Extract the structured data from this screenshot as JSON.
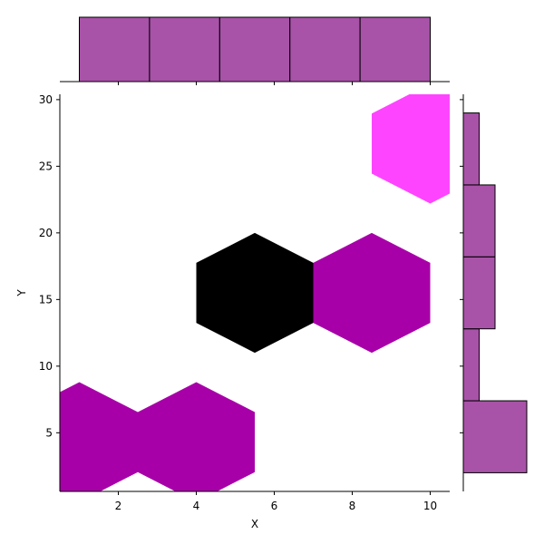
{
  "chart_data": {
    "type": "hexbin-jointplot",
    "xlabel": "X",
    "ylabel": "Y",
    "xlim": [
      0.5,
      10.5
    ],
    "ylim": [
      0.6,
      30.4
    ],
    "x_ticks": [
      2,
      4,
      6,
      8,
      10
    ],
    "y_ticks": [
      5,
      10,
      15,
      20,
      25,
      30
    ],
    "x_tick_labels": [
      "2",
      "4",
      "6",
      "8",
      "10"
    ],
    "y_tick_labels": [
      "5",
      "10",
      "15",
      "20",
      "25",
      "30"
    ],
    "colors": {
      "low": "#ff44ff",
      "mid": "#a800a8",
      "high": "#000000",
      "marginal": "#8b1a8b"
    },
    "hexbins": [
      {
        "x": 1.0,
        "y": 4.3,
        "level": "mid"
      },
      {
        "x": 4.0,
        "y": 4.3,
        "level": "mid"
      },
      {
        "x": 5.5,
        "y": 15.5,
        "level": "high"
      },
      {
        "x": 8.5,
        "y": 15.5,
        "level": "mid"
      },
      {
        "x": 10.0,
        "y": 26.7,
        "level": "low"
      }
    ],
    "hex_size": {
      "dx": 1.5,
      "dy": 4.5
    },
    "x_marginal": {
      "bin_edges": [
        1.0,
        2.8,
        4.6,
        6.4,
        8.2,
        10.0
      ],
      "counts": [
        1,
        1,
        1,
        1,
        1
      ]
    },
    "y_marginal": {
      "bin_edges": [
        2.0,
        7.4,
        12.8,
        18.2,
        23.6,
        29.0
      ],
      "counts": [
        2,
        0.5,
        1,
        1,
        0.5
      ]
    }
  }
}
